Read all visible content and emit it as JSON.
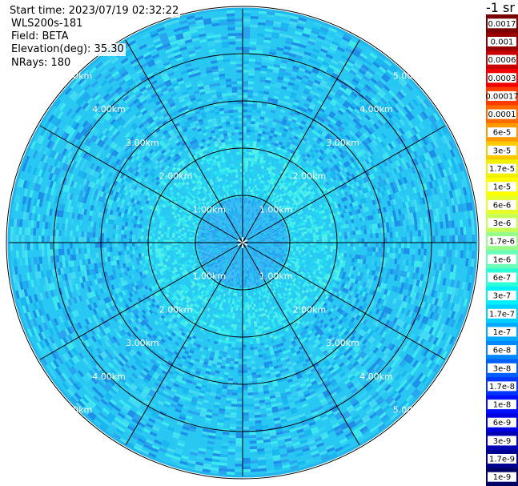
{
  "header": {
    "start_time": "Start time: 2023/07/19 02:32:22",
    "instrument": "WLS200s-181",
    "field": "Field: BETA",
    "elevation": "Elevation(deg): 35.30",
    "nrays": "NRays: 180"
  },
  "colorbar": {
    "unit_label": "-1 sr",
    "labels": [
      "0.0017",
      "0.001",
      "0.0006",
      "0.0003",
      "0.00017",
      "0.0001",
      "6e-5",
      "3e-5",
      "1.7e-5",
      "1e-5",
      "6e-6",
      "3e-6",
      "1.7e-6",
      "1e-6",
      "6e-7",
      "3e-7",
      "1.7e-7",
      "1e-7",
      "6e-8",
      "3e-8",
      "1.7e-8",
      "1e-8",
      "6e-9",
      "3e-9",
      "1.7e-9",
      "1e-9"
    ],
    "colors": [
      "#7a0000",
      "#990000",
      "#c80000",
      "#f00000",
      "#ff3c00",
      "#ff6a00",
      "#ff9a00",
      "#ffc800",
      "#f0f000",
      "#ffff00",
      "#e6ff2a",
      "#c6ff5a",
      "#98ff8a",
      "#6affb8",
      "#2bffd6",
      "#00f0ff",
      "#00d0ff",
      "#00aaff",
      "#0088ff",
      "#0060ff",
      "#0036ff",
      "#0010ff",
      "#0000e0",
      "#0000b4",
      "#000090",
      "#000066"
    ]
  },
  "chart_data": {
    "type": "heatmap",
    "projection": "polar PPI",
    "field": "BETA",
    "range_rings_km": [
      1.0,
      2.0,
      3.0,
      4.0,
      5.0
    ],
    "ring_labels": [
      "1.00km",
      "2.00km",
      "3.00km",
      "4.00km",
      "5.00km"
    ],
    "max_range_km": 5.0,
    "n_rays": 180,
    "spoke_spacing_deg": 30,
    "range_bands": [
      {
        "from_km": 0.0,
        "to_km": 1.0,
        "dominant_value": "1.7e-8"
      },
      {
        "from_km": 1.0,
        "to_km": 2.2,
        "dominant_value": "1.7e-7"
      },
      {
        "from_km": 2.2,
        "to_km": 5.2,
        "dominant_value": "6e-8"
      }
    ]
  }
}
